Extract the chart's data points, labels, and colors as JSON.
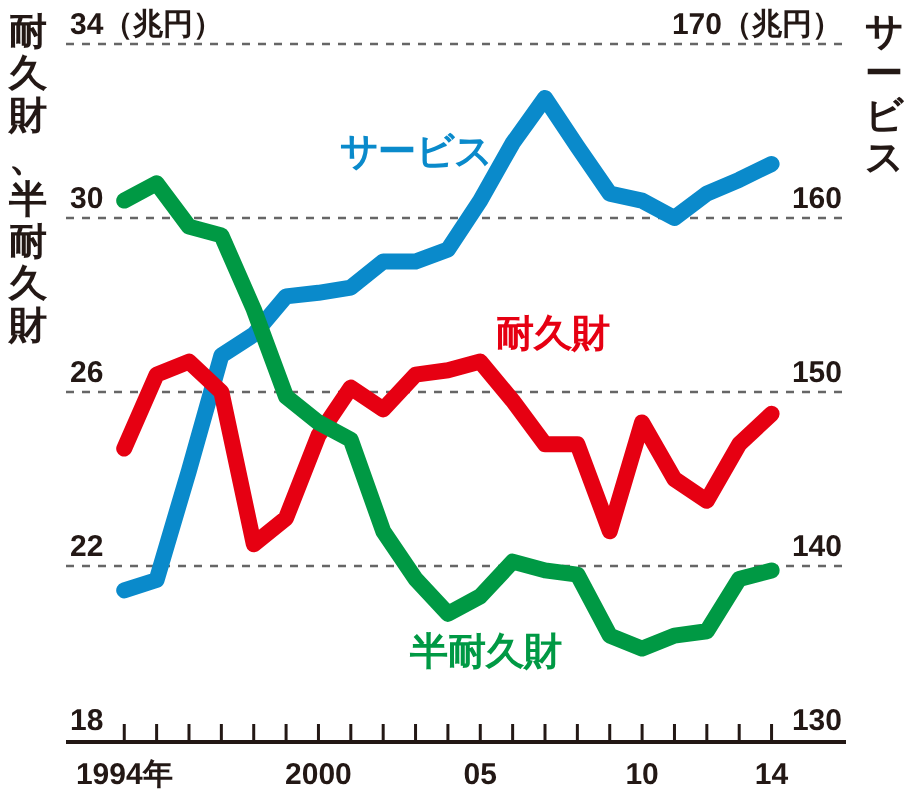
{
  "chart_data": {
    "type": "line",
    "ylabel": "耐久財、半耐久財",
    "y2label": "サービス",
    "x": [
      1994,
      1995,
      1996,
      1997,
      1998,
      1999,
      2000,
      2001,
      2002,
      2003,
      2004,
      2005,
      2006,
      2007,
      2008,
      2009,
      2010,
      2011,
      2012,
      2013,
      2014
    ],
    "xlim": [
      1992.2,
      2016.3
    ],
    "xticks": [
      {
        "value": 1994,
        "label": "1994年"
      },
      {
        "value": 1995,
        "label": null
      },
      {
        "value": 1996,
        "label": null
      },
      {
        "value": 1997,
        "label": null
      },
      {
        "value": 1998,
        "label": null
      },
      {
        "value": 1999,
        "label": null
      },
      {
        "value": 2000,
        "label": "2000"
      },
      {
        "value": 2001,
        "label": null
      },
      {
        "value": 2002,
        "label": null
      },
      {
        "value": 2003,
        "label": null
      },
      {
        "value": 2004,
        "label": null
      },
      {
        "value": 2005,
        "label": "05"
      },
      {
        "value": 2006,
        "label": null
      },
      {
        "value": 2007,
        "label": null
      },
      {
        "value": 2008,
        "label": null
      },
      {
        "value": 2009,
        "label": null
      },
      {
        "value": 2010,
        "label": "10"
      },
      {
        "value": 2011,
        "label": null
      },
      {
        "value": 2012,
        "label": null
      },
      {
        "value": 2013,
        "label": null
      },
      {
        "value": 2014,
        "label": "14"
      }
    ],
    "ylim": [
      18,
      34
    ],
    "yticks": [
      18,
      22,
      26,
      30,
      {
        "value": 34,
        "label": "34（兆円）"
      }
    ],
    "y2lim": [
      130,
      170
    ],
    "y2ticks": [
      130,
      140,
      150,
      160,
      {
        "value": 170,
        "label": "170（兆円）"
      }
    ],
    "grid": "y",
    "legend": false,
    "marker": "none",
    "line_style": "solid",
    "series": [
      {
        "name": "サービス",
        "color": "#0a8acb",
        "axis": "y2",
        "values": [
          138.6,
          139.2,
          145.5,
          152.1,
          153.3,
          155.5,
          155.7,
          156.0,
          157.5,
          157.5,
          158.2,
          161.0,
          164.3,
          166.9,
          164.1,
          161.4,
          161.0,
          160.0,
          161.4,
          162.2,
          163.1
        ]
      },
      {
        "name": "耐久財",
        "color": "#e60012",
        "values": [
          24.7,
          26.4,
          26.7,
          26.0,
          22.5,
          23.1,
          25.0,
          26.1,
          25.6,
          26.4,
          26.5,
          26.7,
          25.8,
          24.8,
          24.8,
          22.8,
          25.3,
          24.0,
          23.5,
          24.8,
          25.5
        ]
      },
      {
        "name": "半耐久財",
        "color": "#009944",
        "values": [
          30.4,
          30.8,
          29.8,
          29.6,
          27.9,
          25.9,
          25.3,
          24.9,
          22.8,
          21.7,
          20.9,
          21.3,
          22.1,
          21.9,
          21.8,
          20.4,
          20.1,
          20.4,
          20.5,
          21.7,
          21.9
        ]
      }
    ]
  }
}
